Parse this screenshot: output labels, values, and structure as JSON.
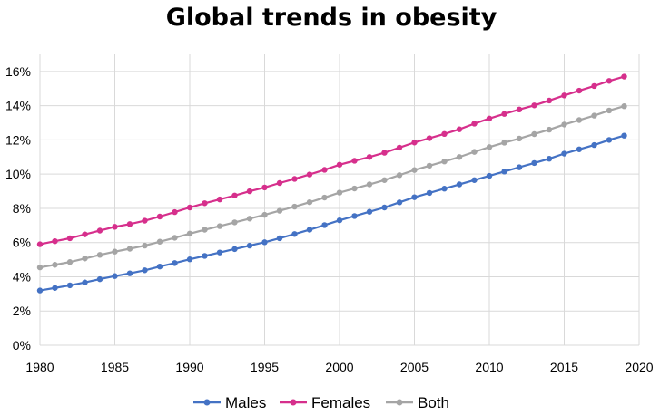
{
  "chart_data": {
    "type": "line",
    "title": "Global trends in obesity",
    "xlabel": "",
    "ylabel": "",
    "xlim": [
      1980,
      2020
    ],
    "ylim": [
      0,
      17
    ],
    "grid": true,
    "legend_position": "bottom",
    "x_ticks": [
      1980,
      1985,
      1990,
      1995,
      2000,
      2005,
      2010,
      2015,
      2020
    ],
    "x_tick_labels": [
      "1980",
      "1985",
      "1990",
      "1995",
      "2000",
      "2005",
      "2010",
      "2015",
      "2020"
    ],
    "y_ticks": [
      0,
      2,
      4,
      6,
      8,
      10,
      12,
      14,
      16
    ],
    "y_tick_labels": [
      "0%",
      "2%",
      "4%",
      "6%",
      "8%",
      "10%",
      "12%",
      "14%",
      "16%"
    ],
    "x": [
      1980,
      1981,
      1982,
      1983,
      1984,
      1985,
      1986,
      1987,
      1988,
      1989,
      1990,
      1991,
      1992,
      1993,
      1994,
      1995,
      1996,
      1997,
      1998,
      1999,
      2000,
      2001,
      2002,
      2003,
      2004,
      2005,
      2006,
      2007,
      2008,
      2009,
      2010,
      2011,
      2012,
      2013,
      2014,
      2015,
      2016,
      2017,
      2018,
      2019
    ],
    "series": [
      {
        "name": "Males",
        "color": "#4472c4",
        "values": [
          3.2,
          3.35,
          3.5,
          3.67,
          3.86,
          4.04,
          4.2,
          4.38,
          4.6,
          4.8,
          5.02,
          5.22,
          5.42,
          5.62,
          5.82,
          6.02,
          6.25,
          6.5,
          6.75,
          7.02,
          7.3,
          7.55,
          7.8,
          8.05,
          8.35,
          8.65,
          8.9,
          9.15,
          9.4,
          9.65,
          9.9,
          10.15,
          10.4,
          10.65,
          10.9,
          11.2,
          11.45,
          11.7,
          12.0,
          12.25
        ]
      },
      {
        "name": "Females",
        "color": "#d62f8c",
        "values": [
          5.9,
          6.08,
          6.25,
          6.48,
          6.7,
          6.92,
          7.08,
          7.28,
          7.52,
          7.78,
          8.05,
          8.3,
          8.52,
          8.75,
          9.0,
          9.22,
          9.48,
          9.72,
          9.98,
          10.25,
          10.55,
          10.78,
          11.0,
          11.25,
          11.55,
          11.85,
          12.1,
          12.35,
          12.62,
          12.95,
          13.25,
          13.52,
          13.78,
          14.02,
          14.3,
          14.6,
          14.88,
          15.15,
          15.45,
          15.7
        ]
      },
      {
        "name": "Both",
        "color": "#a5a5a5",
        "values": [
          4.55,
          4.7,
          4.86,
          5.07,
          5.28,
          5.47,
          5.64,
          5.82,
          6.05,
          6.28,
          6.52,
          6.75,
          6.96,
          7.18,
          7.4,
          7.62,
          7.86,
          8.1,
          8.36,
          8.63,
          8.92,
          9.16,
          9.4,
          9.65,
          9.94,
          10.24,
          10.49,
          10.74,
          11.0,
          11.3,
          11.58,
          11.84,
          12.08,
          12.34,
          12.6,
          12.9,
          13.16,
          13.42,
          13.72,
          13.97
        ]
      }
    ]
  }
}
